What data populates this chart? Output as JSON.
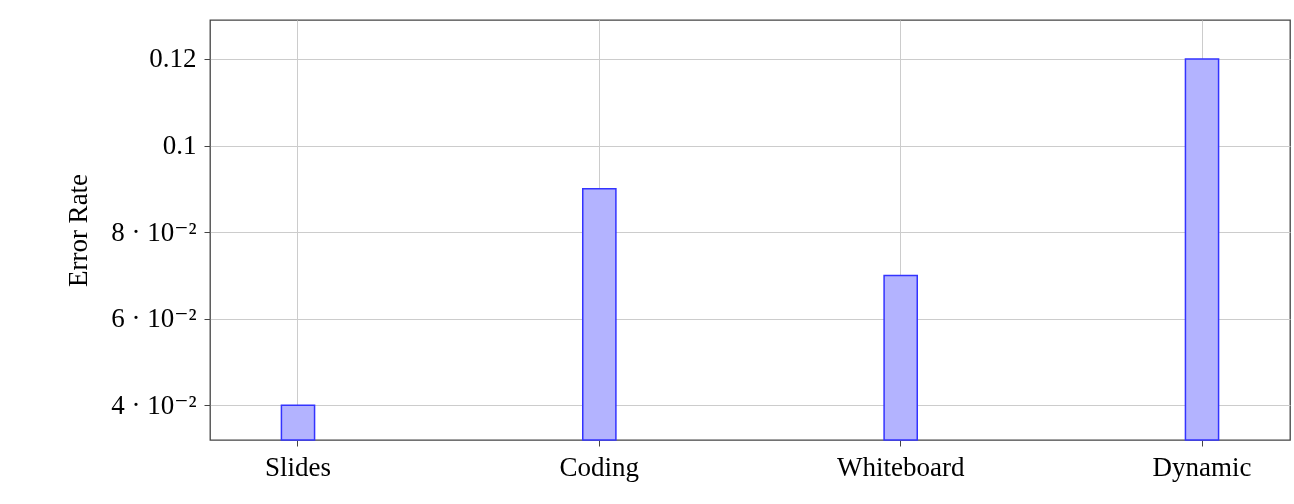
{
  "chart_data": {
    "type": "bar",
    "ylabel": "Error Rate",
    "categories": [
      "Slides",
      "Coding",
      "Whiteboard",
      "Dynamic"
    ],
    "values": [
      0.04,
      0.09,
      0.07,
      0.12
    ],
    "color": "#b3b3ff",
    "ylim": [
      0.032,
      0.129
    ],
    "yticks": [
      {
        "value": 0.04,
        "label": "4 · 10⁻²"
      },
      {
        "value": 0.06,
        "label": "6 · 10⁻²"
      },
      {
        "value": 0.08,
        "label": "8 · 10⁻²"
      },
      0.1,
      0.12
    ],
    "grid": true
  }
}
